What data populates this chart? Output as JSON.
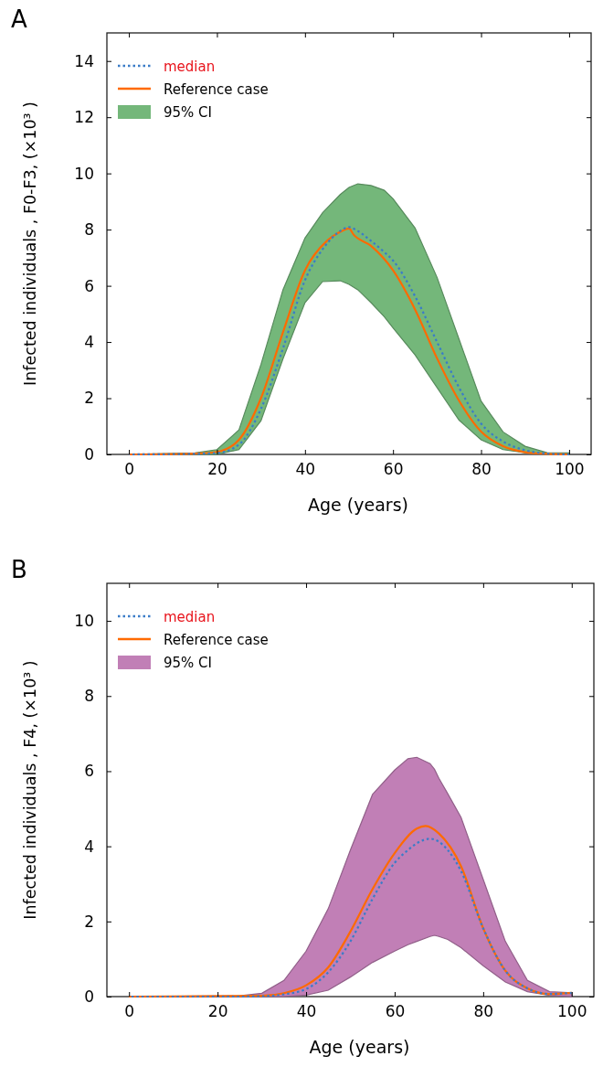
{
  "chart_data": [
    {
      "type": "line",
      "title": "A",
      "xlabel": "Age (years)",
      "ylabel": "Infected individuals , F0-F3, (×10³ )",
      "xlim": [
        -5,
        105
      ],
      "xticks": [
        0,
        20,
        40,
        60,
        80,
        100
      ],
      "ylim": [
        0,
        15
      ],
      "yticks": [
        0,
        2,
        4,
        6,
        8,
        10,
        12,
        14
      ],
      "legend": "top left",
      "series": [
        {
          "name": "median",
          "color": "#3a7cc8",
          "line_style": "dotted",
          "x": [
            0,
            15,
            20,
            25,
            30,
            35,
            40,
            44,
            48,
            50,
            52,
            55,
            58,
            60,
            65,
            70,
            75,
            80,
            85,
            90,
            95,
            100
          ],
          "values": [
            0,
            0.02,
            0.05,
            0.35,
            1.62,
            3.77,
            6.2,
            7.3,
            7.95,
            8.09,
            7.95,
            7.6,
            7.2,
            6.9,
            5.63,
            4.0,
            2.38,
            1.1,
            0.46,
            0.15,
            0.03,
            0
          ],
          "lower": [
            0,
            0,
            0,
            0.17,
            1.2,
            3.4,
            5.4,
            6.15,
            6.18,
            6.05,
            5.86,
            5.4,
            4.9,
            4.5,
            3.54,
            2.38,
            1.22,
            0.52,
            0.17,
            0.06,
            0.01,
            0
          ],
          "upper": [
            0,
            0.05,
            0.17,
            0.87,
            3.2,
            5.86,
            7.7,
            8.6,
            9.25,
            9.5,
            9.63,
            9.57,
            9.4,
            9.1,
            8.06,
            6.3,
            4.1,
            1.9,
            0.8,
            0.29,
            0.06,
            0.05
          ]
        },
        {
          "name": "Reference case",
          "color": "#ff6a00",
          "line_style": "solid",
          "x": [
            0,
            15,
            20,
            25,
            30,
            35,
            40,
            45,
            48,
            50,
            51,
            55,
            60,
            65,
            70,
            75,
            80,
            85,
            90,
            95,
            100
          ],
          "values": [
            0,
            0.03,
            0.09,
            0.52,
            2.0,
            4.35,
            6.55,
            7.6,
            7.92,
            8.04,
            7.83,
            7.42,
            6.55,
            5.16,
            3.42,
            1.91,
            0.81,
            0.29,
            0.08,
            0.02,
            0
          ]
        },
        {
          "name": "95% CI",
          "type": "area",
          "color": "#74b77a"
        }
      ]
    },
    {
      "type": "line",
      "title": "B",
      "xlabel": "Age (years)",
      "ylabel": "Infected individuals , F4, (×10³ )",
      "xlim": [
        -5,
        105
      ],
      "xticks": [
        0,
        20,
        40,
        60,
        80,
        100
      ],
      "ylim": [
        0,
        11
      ],
      "yticks": [
        0,
        2,
        4,
        6,
        8,
        10
      ],
      "legend": "top left",
      "series": [
        {
          "name": "median",
          "color": "#3a7cc8",
          "line_style": "dotted",
          "x": [
            0,
            25,
            30,
            35,
            40,
            45,
            50,
            55,
            60,
            63,
            65,
            68,
            69,
            70,
            72,
            75,
            80,
            85,
            90,
            95,
            100
          ],
          "values": [
            0,
            0,
            0.01,
            0.06,
            0.2,
            0.65,
            1.47,
            2.6,
            3.56,
            3.9,
            4.08,
            4.2,
            4.18,
            4.12,
            3.9,
            3.34,
            1.82,
            0.69,
            0.22,
            0.07,
            0.1
          ],
          "lower": [
            0,
            0,
            0,
            0,
            0.04,
            0.17,
            0.52,
            0.91,
            1.21,
            1.38,
            1.47,
            1.6,
            1.63,
            1.6,
            1.52,
            1.3,
            0.82,
            0.39,
            0.13,
            0.03,
            0
          ],
          "upper": [
            0,
            0.02,
            0.09,
            0.43,
            1.21,
            2.34,
            3.9,
            5.38,
            6.03,
            6.33,
            6.37,
            6.2,
            6.05,
            5.81,
            5.4,
            4.77,
            3.12,
            1.47,
            0.43,
            0.13,
            0.1
          ]
        },
        {
          "name": "Reference case",
          "color": "#ff6a00",
          "line_style": "solid",
          "x": [
            0,
            30,
            35,
            40,
            45,
            50,
            55,
            60,
            65,
            67,
            70,
            75,
            80,
            85,
            90,
            95,
            100
          ],
          "values": [
            0,
            0.02,
            0.09,
            0.3,
            0.78,
            1.73,
            2.86,
            3.82,
            4.47,
            4.54,
            4.34,
            3.47,
            1.82,
            0.69,
            0.22,
            0.07,
            0.1
          ]
        },
        {
          "name": "95% CI",
          "type": "area",
          "color": "#c17fb6"
        }
      ]
    }
  ]
}
